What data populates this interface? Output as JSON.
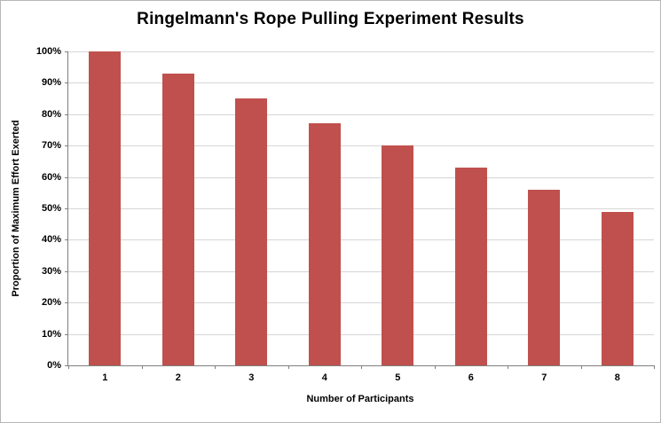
{
  "chart_data": {
    "type": "bar",
    "title": "Ringelmann's Rope Pulling Experiment Results",
    "categories": [
      "1",
      "2",
      "3",
      "4",
      "5",
      "6",
      "7",
      "8"
    ],
    "values": [
      100,
      93,
      85,
      77,
      70,
      63,
      56,
      49
    ],
    "xlabel": "Number of Participants",
    "ylabel": "Proportion of Maximum Effort Exerted",
    "ylim": [
      0,
      100
    ],
    "ytick_step": 10,
    "ytick_suffix": "%",
    "grid": "horizontal",
    "legend": "none",
    "bar_color": "#c0504d"
  },
  "colors": {
    "background": "#ffffff",
    "gridline": "#d6d6d6",
    "axis": "#7f7f7f",
    "text": "#000000",
    "chart_border": "#b7b7b7"
  }
}
